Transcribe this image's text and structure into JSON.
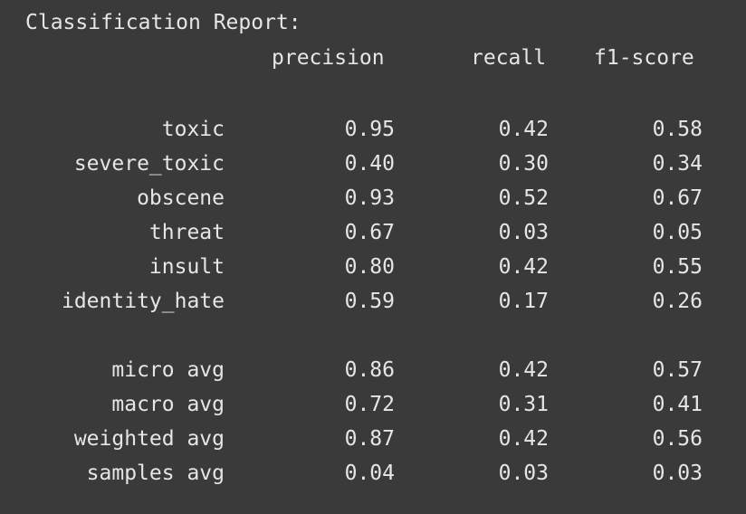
{
  "report": {
    "title": "Classification Report:",
    "headers": {
      "precision": "precision",
      "recall": "recall",
      "f1": "f1-score"
    },
    "class_rows": [
      {
        "label": "toxic",
        "precision": "0.95",
        "recall": "0.42",
        "f1": "0.58"
      },
      {
        "label": "severe_toxic",
        "precision": "0.40",
        "recall": "0.30",
        "f1": "0.34"
      },
      {
        "label": "obscene",
        "precision": "0.93",
        "recall": "0.52",
        "f1": "0.67"
      },
      {
        "label": "threat",
        "precision": "0.67",
        "recall": "0.03",
        "f1": "0.05"
      },
      {
        "label": "insult",
        "precision": "0.80",
        "recall": "0.42",
        "f1": "0.55"
      },
      {
        "label": "identity_hate",
        "precision": "0.59",
        "recall": "0.17",
        "f1": "0.26"
      }
    ],
    "avg_rows": [
      {
        "label": "micro avg",
        "precision": "0.86",
        "recall": "0.42",
        "f1": "0.57"
      },
      {
        "label": "macro avg",
        "precision": "0.72",
        "recall": "0.31",
        "f1": "0.41"
      },
      {
        "label": "weighted avg",
        "precision": "0.87",
        "recall": "0.42",
        "f1": "0.56"
      },
      {
        "label": "samples avg",
        "precision": "0.04",
        "recall": "0.03",
        "f1": "0.03"
      }
    ]
  },
  "colors": {
    "background": "#3a3a3a",
    "text": "#e6e6e6"
  }
}
